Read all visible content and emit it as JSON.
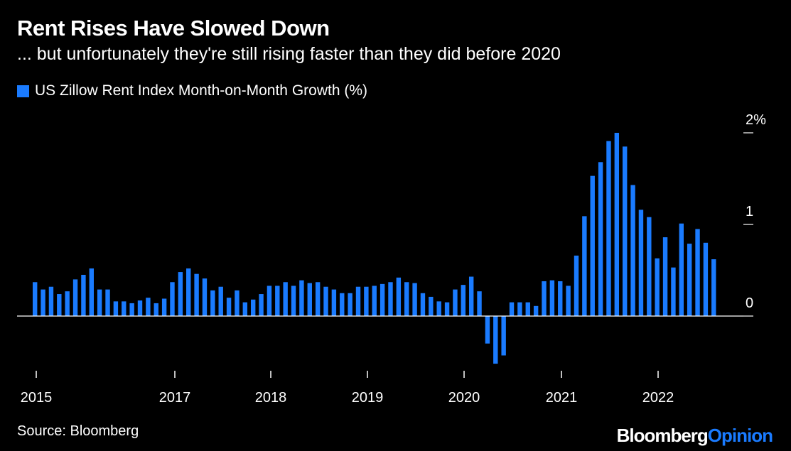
{
  "title": "Rent Rises Have Slowed Down",
  "subtitle": "... but unfortunately they're still rising faster than they did before 2020",
  "legend_label": "US Zillow Rent Index Month-on-Month Growth (%)",
  "source": "Source: Bloomberg",
  "brand": {
    "part1": "Bloomberg",
    "part2": "Opinion"
  },
  "colors": {
    "bar": "#1a7bff",
    "background": "#000000",
    "text": "#ffffff"
  },
  "chart_data": {
    "type": "bar",
    "series": [
      {
        "name": "US Zillow Rent Index Month-on-Month Growth (%)",
        "start": "2015-01",
        "values": [
          0.37,
          0.29,
          0.32,
          0.24,
          0.27,
          0.4,
          0.45,
          0.52,
          0.29,
          0.29,
          0.16,
          0.16,
          0.14,
          0.17,
          0.2,
          0.14,
          0.19,
          0.37,
          0.48,
          0.52,
          0.46,
          0.41,
          0.28,
          0.32,
          0.2,
          0.28,
          0.15,
          0.18,
          0.24,
          0.33,
          0.33,
          0.37,
          0.33,
          0.39,
          0.36,
          0.37,
          0.32,
          0.29,
          0.25,
          0.25,
          0.32,
          0.32,
          0.33,
          0.35,
          0.37,
          0.42,
          0.37,
          0.36,
          0.25,
          0.21,
          0.16,
          0.15,
          0.29,
          0.34,
          0.43,
          0.27,
          -0.3,
          -0.52,
          -0.43,
          0.15,
          0.15,
          0.15,
          0.11,
          0.38,
          0.39,
          0.38,
          0.33,
          0.66,
          1.09,
          1.53,
          1.68,
          1.91,
          2.0,
          1.85,
          1.43,
          1.16,
          1.08,
          0.63,
          0.86,
          0.53,
          1.01,
          0.79,
          0.95,
          0.8,
          0.62
        ]
      }
    ],
    "x_ticks": [
      "2015",
      "2017",
      "2018",
      "2019",
      "2020",
      "2021",
      "2022"
    ],
    "y_ticks": [
      "0",
      "1",
      "2%"
    ],
    "ylim": [
      -0.55,
      2.05
    ],
    "xlabel": "",
    "ylabel": "",
    "grid": false,
    "legend_position": "top-left"
  }
}
